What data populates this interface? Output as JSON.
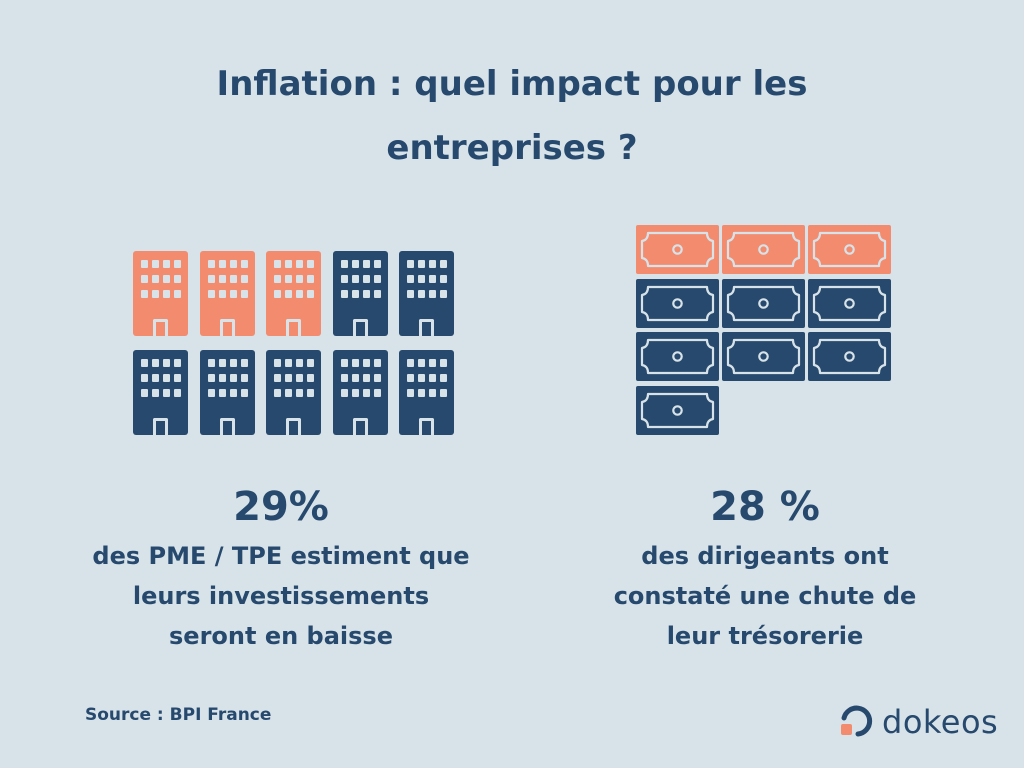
{
  "header": {
    "title_line1": "Inflation : quel impact pour les",
    "title_line2": "entreprises ?"
  },
  "colors": {
    "highlight": "#f38b6e",
    "base": "#27496d",
    "background": "#d7e3e9"
  },
  "icons": {
    "left": "building-icon",
    "right": "banknote-icon"
  },
  "stats": {
    "left": {
      "value": "29%",
      "highlighted_icons": 3,
      "total_icons": 10,
      "line1": "des PME / TPE estiment que",
      "line2": "leurs investissements",
      "line3": "seront en baisse"
    },
    "right": {
      "value": "28 %",
      "highlighted_icons": 3,
      "total_icons": 10,
      "line1": "des dirigeants ont",
      "line2": "constaté une chute de",
      "line3": "leur trésorerie"
    }
  },
  "footer": {
    "source": "Source : BPI France",
    "logo": "dokeos"
  }
}
